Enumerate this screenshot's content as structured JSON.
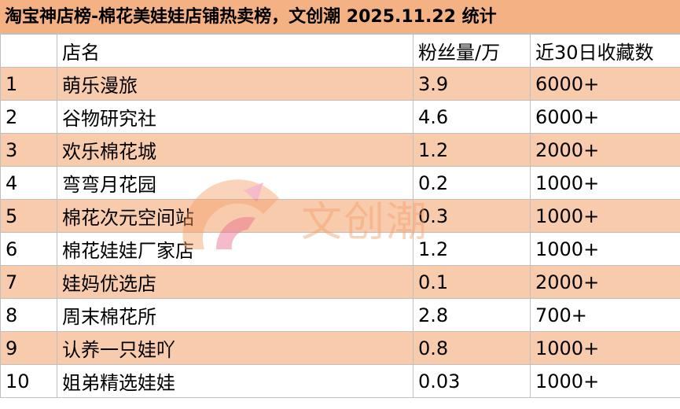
{
  "title": "淘宝神店榜-棉花美娃娃店铺热卖榜，文创潮 2025.11.22 统计",
  "columns": [
    "",
    "店名",
    "粉丝量/万",
    "近30日收藏数"
  ],
  "rows": [
    {
      "rank": "1",
      "name": "萌乐漫旅",
      "fans": "3.9",
      "favorites": "6000+"
    },
    {
      "rank": "2",
      "name": "谷物研究社",
      "fans": "4.6",
      "favorites": "6000+"
    },
    {
      "rank": "3",
      "name": "欢乐棉花城",
      "fans": "1.2",
      "favorites": "2000+"
    },
    {
      "rank": "4",
      "name": "弯弯月花园",
      "fans": "0.2",
      "favorites": "1000+"
    },
    {
      "rank": "5",
      "name": "棉花次元空间站",
      "fans": "0.3",
      "favorites": "1000+"
    },
    {
      "rank": "6",
      "name": "棉花娃娃厂家店",
      "fans": "1.2",
      "favorites": "1000+"
    },
    {
      "rank": "7",
      "name": "娃妈优选店",
      "fans": "0.1",
      "favorites": "2000+"
    },
    {
      "rank": "8",
      "name": "周末棉花所",
      "fans": "2.8",
      "favorites": "700+"
    },
    {
      "rank": "9",
      "name": "认养一只娃吖",
      "fans": "0.8",
      "favorites": "1000+"
    },
    {
      "rank": "10",
      "name": "姐弟精选娃娃",
      "fans": "0.03",
      "favorites": "1000+"
    }
  ],
  "watermark": {
    "text": "文创潮"
  },
  "colors": {
    "title_bg": "#f4b183",
    "stripe_bg": "#f8cbad",
    "grid": "#bfbfbf"
  }
}
